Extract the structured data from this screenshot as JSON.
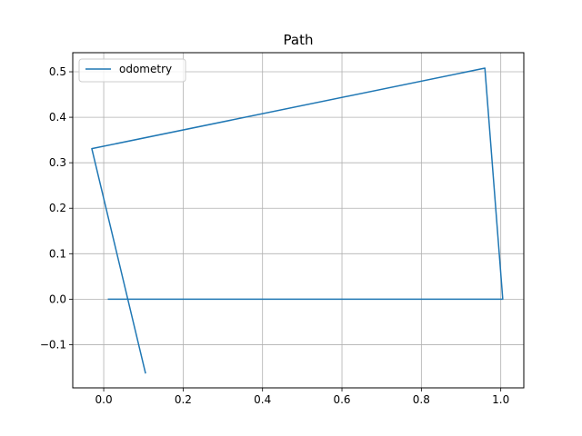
{
  "chart_data": {
    "type": "line",
    "title": "Path",
    "xlabel": "",
    "ylabel": "",
    "xlim": [
      -0.078,
      1.058
    ],
    "ylim": [
      -0.195,
      0.542
    ],
    "x_ticks": [
      0.0,
      0.2,
      0.4,
      0.6,
      0.8,
      1.0
    ],
    "y_ticks": [
      -0.1,
      0.0,
      0.1,
      0.2,
      0.3,
      0.4,
      0.5
    ],
    "x_tick_labels": [
      "0.0",
      "0.2",
      "0.4",
      "0.6",
      "0.8",
      "1.0"
    ],
    "y_tick_labels": [
      "−0.1",
      "0.0",
      "0.1",
      "0.2",
      "0.3",
      "0.4",
      "0.5"
    ],
    "grid": true,
    "legend_position": "top-left",
    "series": [
      {
        "name": "odometry",
        "color": "#1f77b4",
        "x": [
          0.012,
          1.005,
          0.96,
          -0.03,
          0.105
        ],
        "y": [
          0.0,
          0.0,
          0.508,
          0.331,
          -0.162
        ]
      }
    ]
  }
}
